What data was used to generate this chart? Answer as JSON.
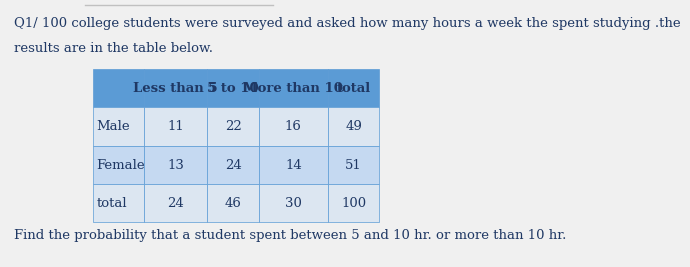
{
  "title_line1": "Q1/ 100 college students were surveyed and asked how many hours a week the spent studying .the",
  "title_line2": "results are in the table below.",
  "footer": "Find the probability that a student spent between 5 and 10 hr. or more than 10 hr.",
  "col_headers": [
    "",
    "Less than 5",
    "5 to 10",
    "More than 10",
    "total"
  ],
  "rows": [
    [
      "Male",
      "11",
      "22",
      "16",
      "49"
    ],
    [
      "Female",
      "13",
      "24",
      "14",
      "51"
    ],
    [
      "total",
      "24",
      "46",
      "30",
      "100"
    ]
  ],
  "header_bg": "#5b9bd5",
  "row_bg_light": "#dce6f1",
  "row_bg_lighter": "#c5d9f1",
  "table_border": "#5b9bd5",
  "text_color": "#1f3864",
  "header_text_color": "#1f3864",
  "bg_color": "#f0f0f0",
  "title_fontsize": 9.5,
  "cell_fontsize": 9.5,
  "footer_fontsize": 9.5,
  "top_line_color": "#c0c0c0"
}
